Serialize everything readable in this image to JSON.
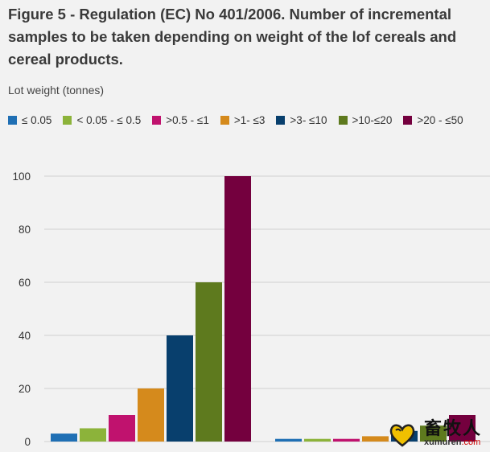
{
  "chart_data": {
    "type": "bar",
    "title": "Figure 5 - Regulation (EC) No 401/2006. Number of incremental samples to be taken depending on weight of the lof cereals and cereal products.",
    "subtitle": "Lot weight (tonnes)",
    "ylim": [
      0,
      100
    ],
    "yticks": [
      0,
      20,
      40,
      60,
      80,
      100
    ],
    "grid": true,
    "legend_position": "top",
    "categories": [
      "",
      ""
    ],
    "series": [
      {
        "name": "≤ 0.05",
        "color": "#1f6fb4",
        "values": [
          3,
          1
        ]
      },
      {
        "name": "< 0.05 - ≤ 0.5",
        "color": "#8cb33a",
        "values": [
          5,
          1
        ]
      },
      {
        "name": ">0.5 - ≤1",
        "color": "#c0126e",
        "values": [
          10,
          1
        ]
      },
      {
        "name": ">1- ≤3",
        "color": "#d58a1c",
        "values": [
          20,
          2
        ]
      },
      {
        "name": ">3- ≤10",
        "color": "#083f6d",
        "values": [
          40,
          4
        ]
      },
      {
        "name": ">10-≤20",
        "color": "#5e7a1e",
        "values": [
          60,
          6
        ]
      },
      {
        "name": ">20 - ≤50",
        "color": "#74003e",
        "values": [
          100,
          10
        ]
      }
    ]
  },
  "watermark": {
    "cn": "畜牧人",
    "url": "xumuren",
    "url_suffix": ".com"
  }
}
